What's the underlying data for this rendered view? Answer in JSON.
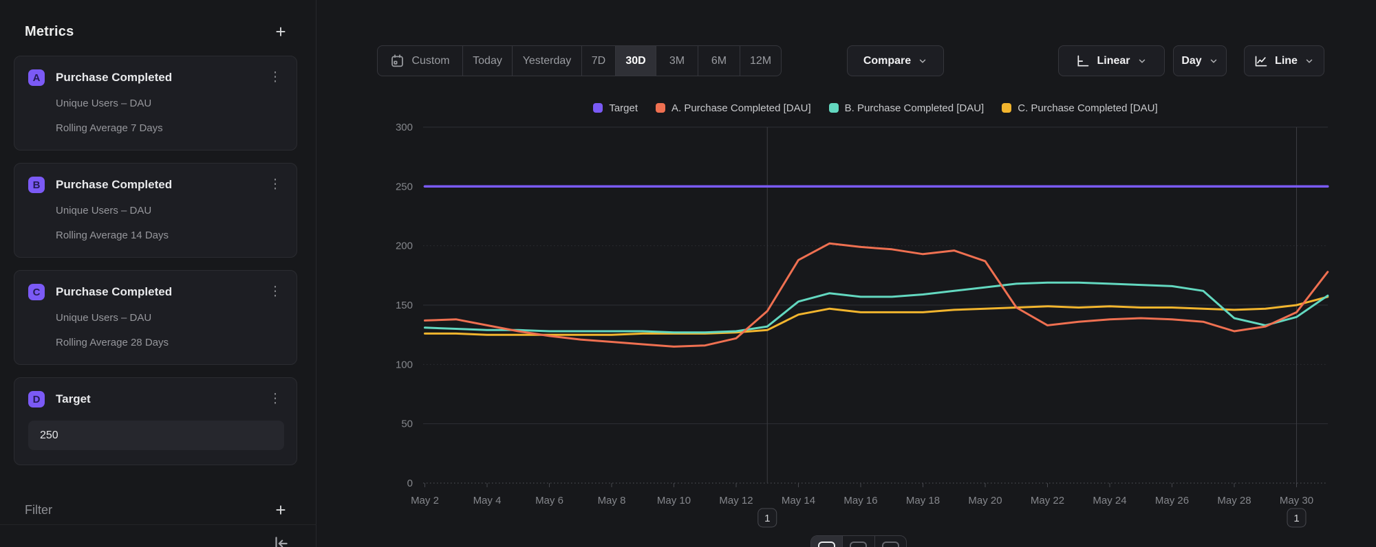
{
  "sidebar": {
    "title": "Metrics",
    "add_icon": "+",
    "kebab_icon": "⋮",
    "metrics": [
      {
        "badge": "A",
        "title": "Purchase Completed",
        "measure": "Unique Users – DAU",
        "rolling": "Rolling Average 7 Days"
      },
      {
        "badge": "B",
        "title": "Purchase Completed",
        "measure": "Unique Users – DAU",
        "rolling": "Rolling Average 14 Days"
      },
      {
        "badge": "C",
        "title": "Purchase Completed",
        "measure": "Unique Users – DAU",
        "rolling": "Rolling Average 28 Days"
      }
    ],
    "target": {
      "badge": "D",
      "title": "Target",
      "value": "250"
    },
    "filter_label": "Filter"
  },
  "toolbar": {
    "ranges": [
      "Custom",
      "Today",
      "Yesterday",
      "7D",
      "30D",
      "3M",
      "6M",
      "12M"
    ],
    "selected_range": "30D",
    "compare_label": "Compare",
    "scale_label": "Linear",
    "granularity_label": "Day",
    "chart_type_label": "Line"
  },
  "colors": {
    "target": "#7a5af5",
    "series_a": "#ef7051",
    "series_b": "#63d8c0",
    "series_c": "#f2b52e",
    "grid": "#2e2f35",
    "axis": "#55565c",
    "tick_text": "#85878c"
  },
  "chart_data": {
    "type": "line",
    "x_unit": "day",
    "x": [
      "May 2",
      "May 3",
      "May 4",
      "May 5",
      "May 6",
      "May 7",
      "May 8",
      "May 9",
      "May 10",
      "May 11",
      "May 12",
      "May 13",
      "May 14",
      "May 15",
      "May 16",
      "May 17",
      "May 18",
      "May 19",
      "May 20",
      "May 21",
      "May 22",
      "May 23",
      "May 24",
      "May 25",
      "May 26",
      "May 27",
      "May 28",
      "May 29",
      "May 30",
      "May 31"
    ],
    "x_tick_labels": [
      "May 2",
      "May 4",
      "May 6",
      "May 8",
      "May 10",
      "May 12",
      "May 14",
      "May 16",
      "May 18",
      "May 20",
      "May 22",
      "May 24",
      "May 26",
      "May 28",
      "May 30"
    ],
    "ylim": [
      0,
      300
    ],
    "yticks": [
      0,
      50,
      100,
      150,
      200,
      250,
      300
    ],
    "grid": "horizontal",
    "legend_position": "top-center",
    "series": [
      {
        "name": "Target",
        "color": "#7a5af5",
        "values": [
          250,
          250,
          250,
          250,
          250,
          250,
          250,
          250,
          250,
          250,
          250,
          250,
          250,
          250,
          250,
          250,
          250,
          250,
          250,
          250,
          250,
          250,
          250,
          250,
          250,
          250,
          250,
          250,
          250,
          250
        ]
      },
      {
        "name": "A. Purchase Completed [DAU]",
        "color": "#ef7051",
        "values": [
          137,
          138,
          133,
          128,
          124,
          121,
          119,
          117,
          115,
          116,
          122,
          145,
          188,
          202,
          199,
          197,
          193,
          196,
          187,
          148,
          133,
          136,
          138,
          139,
          138,
          136,
          128,
          132,
          144,
          178
        ]
      },
      {
        "name": "B. Purchase Completed [DAU]",
        "color": "#63d8c0",
        "values": [
          131,
          130,
          129,
          129,
          128,
          128,
          128,
          128,
          127,
          127,
          128,
          132,
          153,
          160,
          157,
          157,
          159,
          162,
          165,
          168,
          169,
          169,
          168,
          167,
          166,
          162,
          139,
          133,
          140,
          158
        ]
      },
      {
        "name": "C. Purchase Completed [DAU]",
        "color": "#f2b52e",
        "values": [
          126,
          126,
          125,
          125,
          125,
          125,
          125,
          126,
          126,
          126,
          127,
          129,
          142,
          147,
          144,
          144,
          144,
          146,
          147,
          148,
          149,
          148,
          149,
          148,
          148,
          147,
          146,
          147,
          150,
          157
        ]
      }
    ],
    "annotations": [
      {
        "label": "1",
        "x": "May 13"
      },
      {
        "label": "1",
        "x": "May 30"
      }
    ]
  }
}
